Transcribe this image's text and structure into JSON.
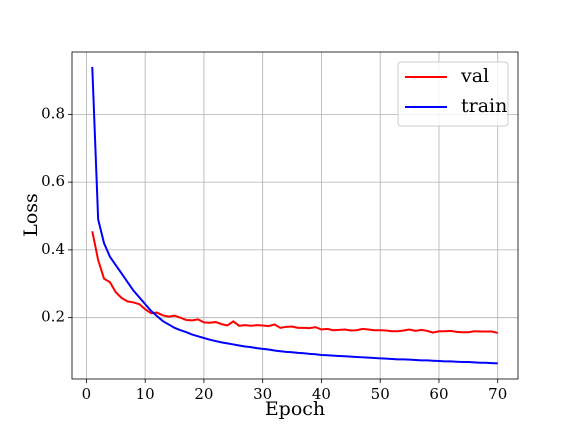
{
  "chart_data": {
    "type": "line",
    "xlabel": "Epoch",
    "ylabel": "Loss",
    "x": [
      1,
      2,
      3,
      4,
      5,
      6,
      7,
      8,
      9,
      10,
      11,
      12,
      13,
      14,
      15,
      16,
      17,
      18,
      19,
      20,
      21,
      22,
      23,
      24,
      25,
      26,
      27,
      28,
      29,
      30,
      31,
      32,
      33,
      34,
      35,
      36,
      37,
      38,
      39,
      40,
      41,
      42,
      43,
      44,
      45,
      46,
      47,
      48,
      49,
      50,
      51,
      52,
      53,
      54,
      55,
      56,
      57,
      58,
      59,
      60,
      61,
      62,
      63,
      64,
      65,
      66,
      67,
      68,
      69,
      70
    ],
    "series": [
      {
        "name": "val",
        "color": "#ff0000",
        "values": [
          0.455,
          0.37,
          0.315,
          0.305,
          0.275,
          0.258,
          0.248,
          0.245,
          0.24,
          0.225,
          0.213,
          0.215,
          0.207,
          0.203,
          0.206,
          0.2,
          0.193,
          0.192,
          0.195,
          0.186,
          0.185,
          0.187,
          0.181,
          0.177,
          0.189,
          0.176,
          0.178,
          0.176,
          0.178,
          0.177,
          0.175,
          0.18,
          0.17,
          0.173,
          0.174,
          0.17,
          0.17,
          0.169,
          0.172,
          0.165,
          0.167,
          0.163,
          0.164,
          0.165,
          0.162,
          0.163,
          0.167,
          0.165,
          0.163,
          0.163,
          0.162,
          0.16,
          0.16,
          0.162,
          0.165,
          0.161,
          0.164,
          0.161,
          0.156,
          0.16,
          0.16,
          0.161,
          0.158,
          0.157,
          0.157,
          0.16,
          0.159,
          0.159,
          0.159,
          0.155
        ]
      },
      {
        "name": "train",
        "color": "#0000ff",
        "values": [
          0.94,
          0.49,
          0.42,
          0.38,
          0.355,
          0.33,
          0.305,
          0.28,
          0.26,
          0.24,
          0.22,
          0.205,
          0.19,
          0.18,
          0.17,
          0.163,
          0.157,
          0.15,
          0.145,
          0.14,
          0.135,
          0.131,
          0.127,
          0.124,
          0.121,
          0.118,
          0.115,
          0.113,
          0.11,
          0.108,
          0.106,
          0.103,
          0.101,
          0.099,
          0.098,
          0.096,
          0.095,
          0.093,
          0.092,
          0.09,
          0.089,
          0.088,
          0.087,
          0.086,
          0.085,
          0.084,
          0.083,
          0.082,
          0.081,
          0.08,
          0.079,
          0.078,
          0.077,
          0.077,
          0.076,
          0.075,
          0.074,
          0.074,
          0.073,
          0.072,
          0.071,
          0.071,
          0.07,
          0.069,
          0.069,
          0.068,
          0.067,
          0.067,
          0.066,
          0.065
        ]
      }
    ],
    "xlim": [
      -2.45,
      73.45
    ],
    "ylim": [
      0.019,
      0.984
    ],
    "xticks": [
      0,
      10,
      20,
      30,
      40,
      50,
      60,
      70
    ],
    "yticks": [
      0.2,
      0.4,
      0.6,
      0.8
    ],
    "grid": true,
    "legend": "upper right"
  }
}
